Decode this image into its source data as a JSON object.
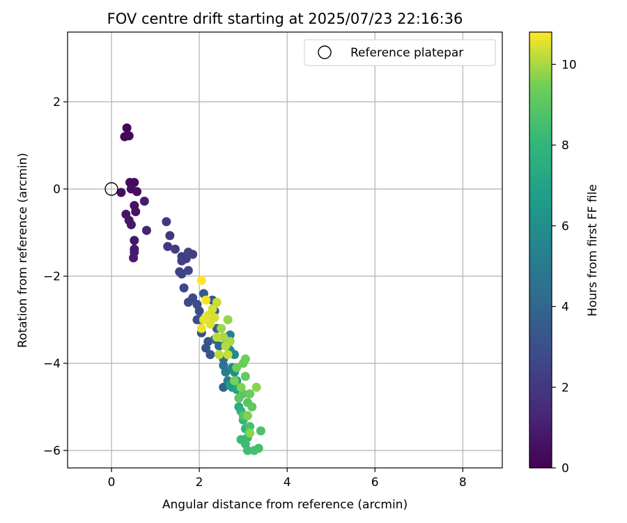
{
  "chart_data": {
    "type": "scatter",
    "title": "FOV centre drift starting at 2025/07/23 22:16:36",
    "xlabel": "Angular distance from reference (arcmin)",
    "ylabel": "Rotation from reference (arcmin)",
    "xlim": [
      -1.0,
      8.9
    ],
    "ylim": [
      -6.4,
      3.6
    ],
    "xticks": [
      0,
      2,
      4,
      6,
      8
    ],
    "xtick_labels": [
      "0",
      "2",
      "4",
      "6",
      "8"
    ],
    "yticks": [
      2,
      0,
      -2,
      -4,
      -6
    ],
    "ytick_labels": [
      "2",
      "0",
      "−2",
      "−4",
      "−6"
    ],
    "grid": true,
    "legend": {
      "placement": "top-right",
      "label": "Reference platepar"
    },
    "reference_point": {
      "x": 0,
      "y": 0
    },
    "colorbar": {
      "label": "Hours from first FF file",
      "colormap": "viridis",
      "range": [
        0,
        10.8
      ],
      "ticks": [
        0,
        2,
        4,
        6,
        8,
        10
      ],
      "tick_labels": [
        "0",
        "2",
        "4",
        "6",
        "8",
        "10"
      ]
    },
    "points": [
      {
        "x": 0.35,
        "y": 1.4,
        "c": 0.1
      },
      {
        "x": 0.3,
        "y": 1.2,
        "c": 0.15
      },
      {
        "x": 0.4,
        "y": 1.22,
        "c": 0.2
      },
      {
        "x": 0.42,
        "y": 0.15,
        "c": 0.3
      },
      {
        "x": 0.52,
        "y": 0.15,
        "c": 0.35
      },
      {
        "x": 0.22,
        "y": -0.08,
        "c": 0.4
      },
      {
        "x": 0.45,
        "y": 0.0,
        "c": 0.45
      },
      {
        "x": 0.58,
        "y": -0.06,
        "c": 0.5
      },
      {
        "x": 0.52,
        "y": -0.38,
        "c": 0.55
      },
      {
        "x": 0.55,
        "y": -0.52,
        "c": 0.6
      },
      {
        "x": 0.33,
        "y": -0.58,
        "c": 0.65
      },
      {
        "x": 0.4,
        "y": -0.72,
        "c": 0.7
      },
      {
        "x": 0.45,
        "y": -0.82,
        "c": 0.75
      },
      {
        "x": 0.52,
        "y": -1.18,
        "c": 0.8
      },
      {
        "x": 0.52,
        "y": -1.38,
        "c": 0.85
      },
      {
        "x": 0.52,
        "y": -1.45,
        "c": 0.9
      },
      {
        "x": 0.5,
        "y": -1.58,
        "c": 0.95
      },
      {
        "x": 0.75,
        "y": -0.28,
        "c": 1.0
      },
      {
        "x": 0.8,
        "y": -0.95,
        "c": 1.2
      },
      {
        "x": 1.25,
        "y": -0.75,
        "c": 2.0
      },
      {
        "x": 1.33,
        "y": -1.07,
        "c": 2.0
      },
      {
        "x": 1.28,
        "y": -1.32,
        "c": 2.1
      },
      {
        "x": 1.45,
        "y": -1.38,
        "c": 2.2
      },
      {
        "x": 1.6,
        "y": -1.55,
        "c": 2.2
      },
      {
        "x": 1.6,
        "y": -1.65,
        "c": 2.3
      },
      {
        "x": 1.7,
        "y": -1.6,
        "c": 2.3
      },
      {
        "x": 1.75,
        "y": -1.45,
        "c": 2.4
      },
      {
        "x": 1.85,
        "y": -1.5,
        "c": 2.4
      },
      {
        "x": 1.55,
        "y": -1.9,
        "c": 2.5
      },
      {
        "x": 1.6,
        "y": -1.95,
        "c": 2.5
      },
      {
        "x": 1.75,
        "y": -1.87,
        "c": 2.6
      },
      {
        "x": 1.65,
        "y": -2.27,
        "c": 2.6
      },
      {
        "x": 1.85,
        "y": -2.5,
        "c": 2.7
      },
      {
        "x": 1.75,
        "y": -2.6,
        "c": 2.7
      },
      {
        "x": 1.95,
        "y": -2.65,
        "c": 2.8
      },
      {
        "x": 2.0,
        "y": -2.8,
        "c": 2.8
      },
      {
        "x": 1.95,
        "y": -3.0,
        "c": 2.9
      },
      {
        "x": 2.05,
        "y": -3.0,
        "c": 2.9
      },
      {
        "x": 2.05,
        "y": -3.3,
        "c": 3.0
      },
      {
        "x": 2.2,
        "y": -3.5,
        "c": 3.1
      },
      {
        "x": 2.15,
        "y": -3.65,
        "c": 3.1
      },
      {
        "x": 2.25,
        "y": -3.8,
        "c": 3.2
      },
      {
        "x": 2.1,
        "y": -2.4,
        "c": 3.3
      },
      {
        "x": 2.3,
        "y": -2.55,
        "c": 3.5
      },
      {
        "x": 2.35,
        "y": -2.8,
        "c": 3.6
      },
      {
        "x": 2.4,
        "y": -3.2,
        "c": 3.7
      },
      {
        "x": 2.55,
        "y": -4.55,
        "c": 3.8
      },
      {
        "x": 2.35,
        "y": -3.45,
        "c": 4.0
      },
      {
        "x": 2.45,
        "y": -3.6,
        "c": 4.2
      },
      {
        "x": 2.55,
        "y": -3.9,
        "c": 4.5
      },
      {
        "x": 2.55,
        "y": -4.05,
        "c": 4.8
      },
      {
        "x": 2.6,
        "y": -4.2,
        "c": 5.0
      },
      {
        "x": 2.65,
        "y": -4.4,
        "c": 5.2
      },
      {
        "x": 2.7,
        "y": -3.35,
        "c": 5.3
      },
      {
        "x": 2.75,
        "y": -4.1,
        "c": 5.5
      },
      {
        "x": 2.8,
        "y": -3.8,
        "c": 5.7
      },
      {
        "x": 2.7,
        "y": -3.7,
        "c": 5.8
      },
      {
        "x": 2.6,
        "y": -3.45,
        "c": 5.9
      },
      {
        "x": 2.8,
        "y": -4.2,
        "c": 6.0
      },
      {
        "x": 2.75,
        "y": -4.55,
        "c": 6.2
      },
      {
        "x": 2.85,
        "y": -4.4,
        "c": 6.5
      },
      {
        "x": 2.7,
        "y": -4.5,
        "c": 6.7
      },
      {
        "x": 2.85,
        "y": -4.6,
        "c": 7.0
      },
      {
        "x": 2.9,
        "y": -5.0,
        "c": 7.5
      },
      {
        "x": 2.95,
        "y": -5.1,
        "c": 7.8
      },
      {
        "x": 3.0,
        "y": -5.3,
        "c": 8.0
      },
      {
        "x": 3.05,
        "y": -5.5,
        "c": 8.0
      },
      {
        "x": 3.1,
        "y": -5.7,
        "c": 8.2
      },
      {
        "x": 2.95,
        "y": -5.75,
        "c": 8.3
      },
      {
        "x": 3.05,
        "y": -5.85,
        "c": 8.3
      },
      {
        "x": 3.1,
        "y": -6.0,
        "c": 8.4
      },
      {
        "x": 3.25,
        "y": -6.0,
        "c": 8.5
      },
      {
        "x": 3.35,
        "y": -5.95,
        "c": 8.5
      },
      {
        "x": 3.4,
        "y": -5.55,
        "c": 8.6
      },
      {
        "x": 3.15,
        "y": -5.45,
        "c": 8.6
      },
      {
        "x": 3.0,
        "y": -5.2,
        "c": 8.8
      },
      {
        "x": 3.1,
        "y": -4.9,
        "c": 8.9
      },
      {
        "x": 2.9,
        "y": -4.8,
        "c": 9.0
      },
      {
        "x": 3.0,
        "y": -4.7,
        "c": 9.0
      },
      {
        "x": 3.2,
        "y": -5.0,
        "c": 9.1
      },
      {
        "x": 3.05,
        "y": -4.3,
        "c": 9.2
      },
      {
        "x": 3.15,
        "y": -4.7,
        "c": 9.3
      },
      {
        "x": 3.0,
        "y": -4.0,
        "c": 9.3
      },
      {
        "x": 2.85,
        "y": -4.1,
        "c": 9.4
      },
      {
        "x": 3.05,
        "y": -3.9,
        "c": 9.4
      },
      {
        "x": 2.8,
        "y": -4.4,
        "c": 9.5
      },
      {
        "x": 2.95,
        "y": -4.55,
        "c": 9.6
      },
      {
        "x": 3.1,
        "y": -5.2,
        "c": 9.6
      },
      {
        "x": 3.15,
        "y": -5.6,
        "c": 9.7
      },
      {
        "x": 3.3,
        "y": -4.55,
        "c": 9.7
      },
      {
        "x": 2.65,
        "y": -3.0,
        "c": 9.8
      },
      {
        "x": 2.5,
        "y": -3.2,
        "c": 9.9
      },
      {
        "x": 2.55,
        "y": -3.4,
        "c": 10.0
      },
      {
        "x": 2.7,
        "y": -3.5,
        "c": 10.0
      },
      {
        "x": 2.6,
        "y": -3.6,
        "c": 10.1
      },
      {
        "x": 2.4,
        "y": -3.4,
        "c": 10.2
      },
      {
        "x": 2.45,
        "y": -3.8,
        "c": 10.2
      },
      {
        "x": 2.65,
        "y": -3.8,
        "c": 10.3
      },
      {
        "x": 2.4,
        "y": -2.6,
        "c": 10.3
      },
      {
        "x": 2.3,
        "y": -2.75,
        "c": 10.4
      },
      {
        "x": 2.35,
        "y": -2.95,
        "c": 10.4
      },
      {
        "x": 2.2,
        "y": -2.9,
        "c": 10.5
      },
      {
        "x": 2.25,
        "y": -3.1,
        "c": 10.5
      },
      {
        "x": 2.1,
        "y": -3.0,
        "c": 10.6
      },
      {
        "x": 2.05,
        "y": -3.2,
        "c": 10.6
      },
      {
        "x": 2.15,
        "y": -2.55,
        "c": 10.7
      },
      {
        "x": 2.05,
        "y": -2.1,
        "c": 10.8
      }
    ]
  }
}
